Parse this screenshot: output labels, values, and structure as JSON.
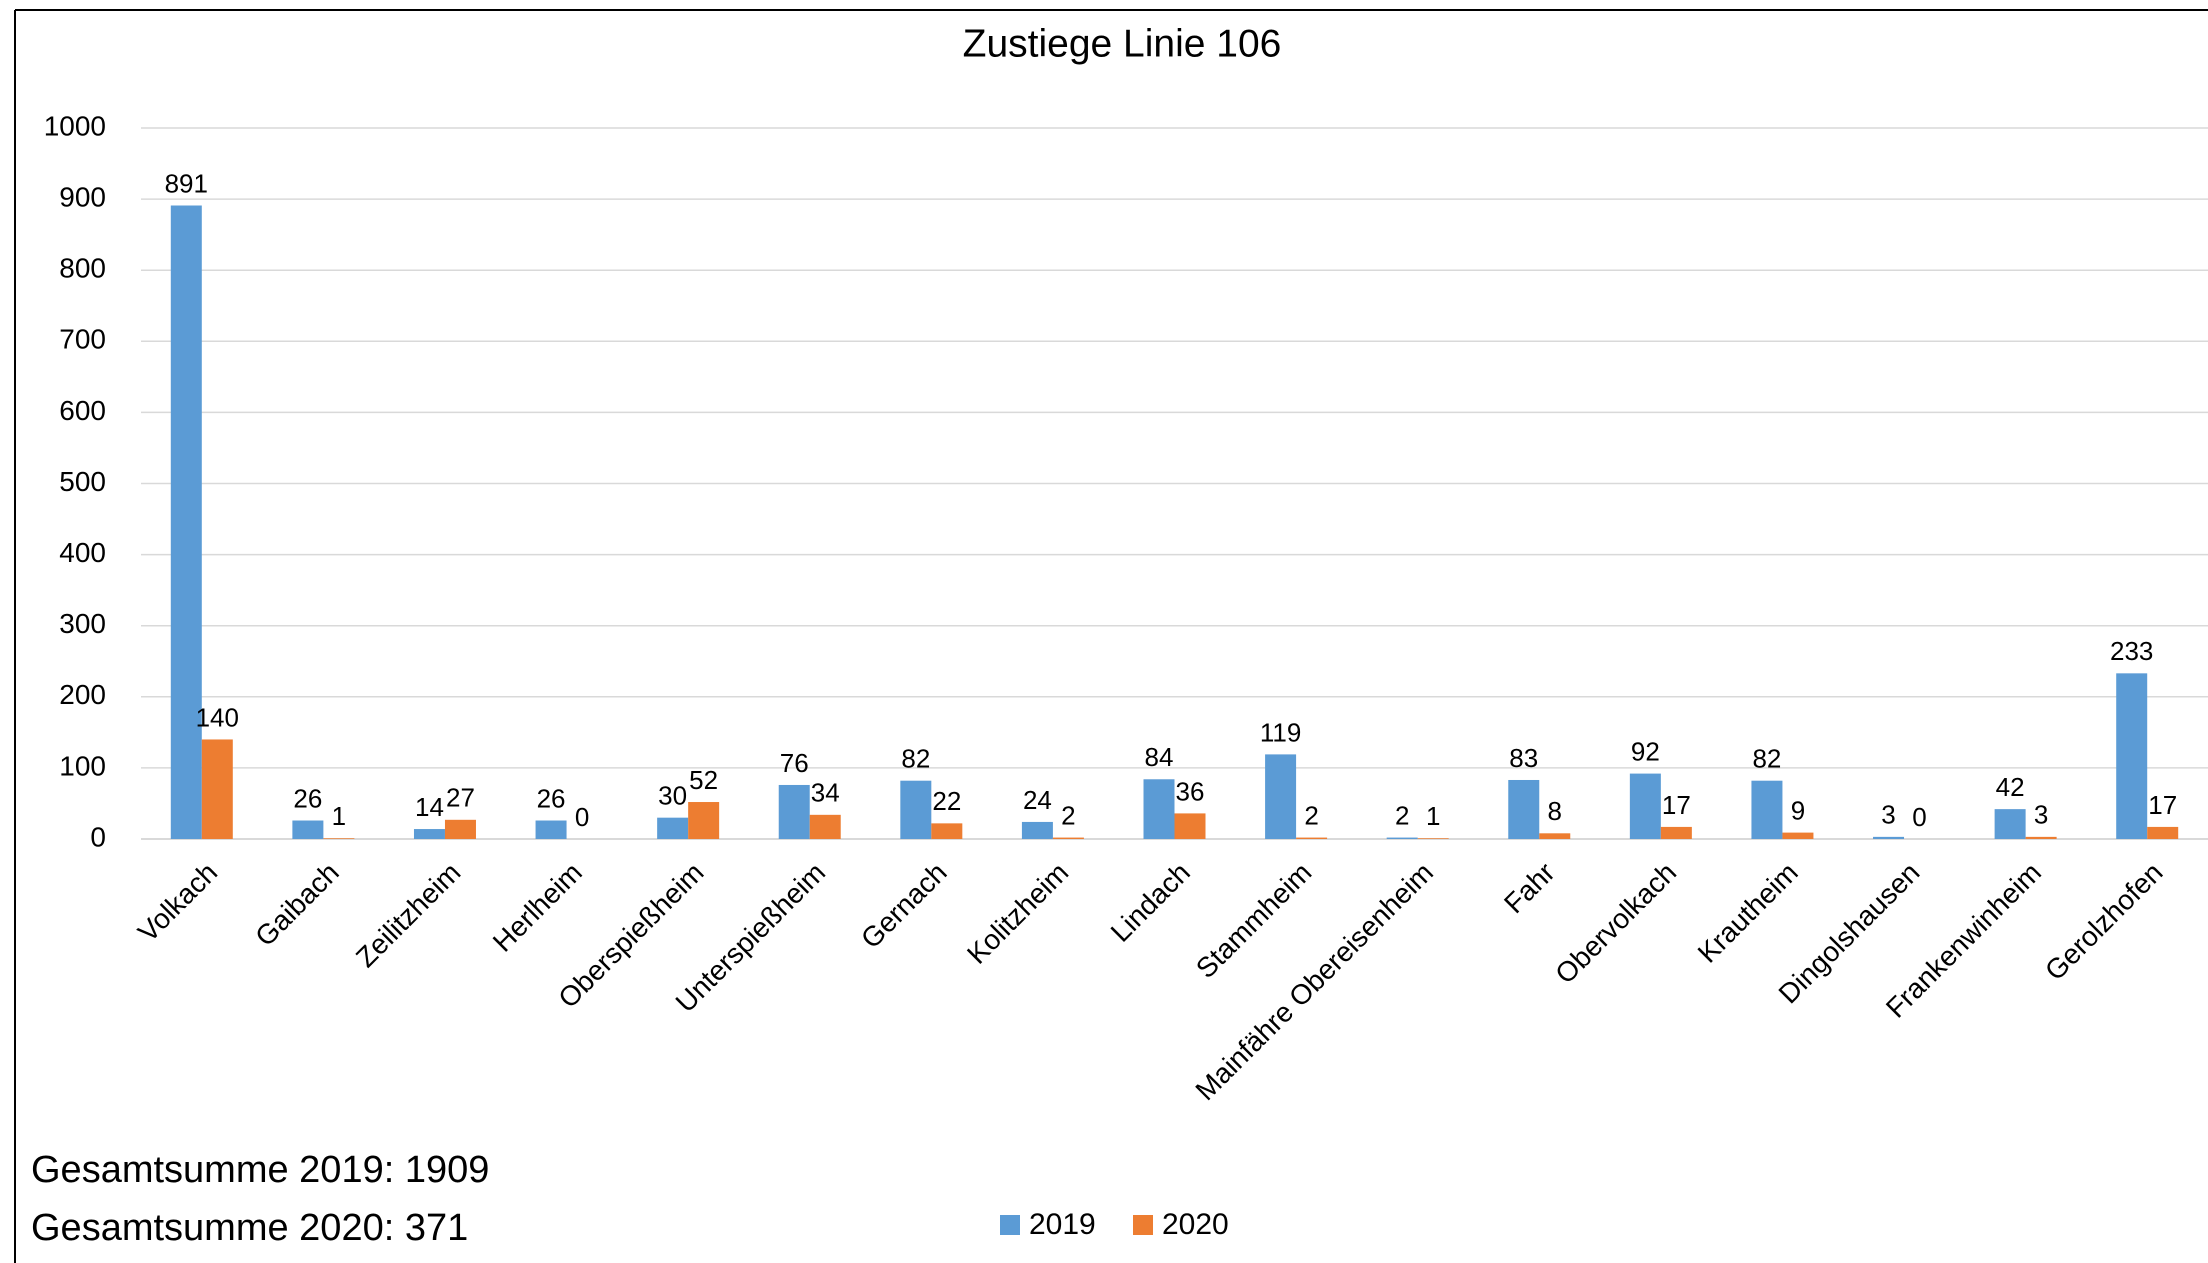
{
  "chart_data": {
    "type": "bar",
    "title": "Zustiege Linie 106",
    "categories": [
      "Volkach",
      "Gaibach",
      "Zeilitzheim",
      "Herlheim",
      "Oberspießheim",
      "Unterspießheim",
      "Gernach",
      "Kolitzheim",
      "Lindach",
      "Stammheim",
      "Mainfähre Obereisenheim",
      "Fahr",
      "Obervolkach",
      "Krautheim",
      "Dingolshausen",
      "Frankenwinheim",
      "Gerolzhofen"
    ],
    "series": [
      {
        "name": "2019",
        "color": "#5b9bd5",
        "values": [
          891,
          26,
          14,
          26,
          30,
          76,
          82,
          24,
          84,
          119,
          2,
          83,
          92,
          82,
          3,
          42,
          233
        ]
      },
      {
        "name": "2020",
        "color": "#ed7d31",
        "values": [
          140,
          1,
          27,
          0,
          52,
          34,
          22,
          2,
          36,
          2,
          1,
          8,
          17,
          9,
          0,
          3,
          17
        ]
      }
    ],
    "ylim": [
      0,
      1000
    ],
    "yticks": [
      0,
      100,
      200,
      300,
      400,
      500,
      600,
      700,
      800,
      900,
      1000
    ],
    "grid": true,
    "legend": "bottom",
    "annotations": [
      "Gesamtsumme 2019: 1909",
      "Gesamtsumme 2020: 371"
    ]
  }
}
